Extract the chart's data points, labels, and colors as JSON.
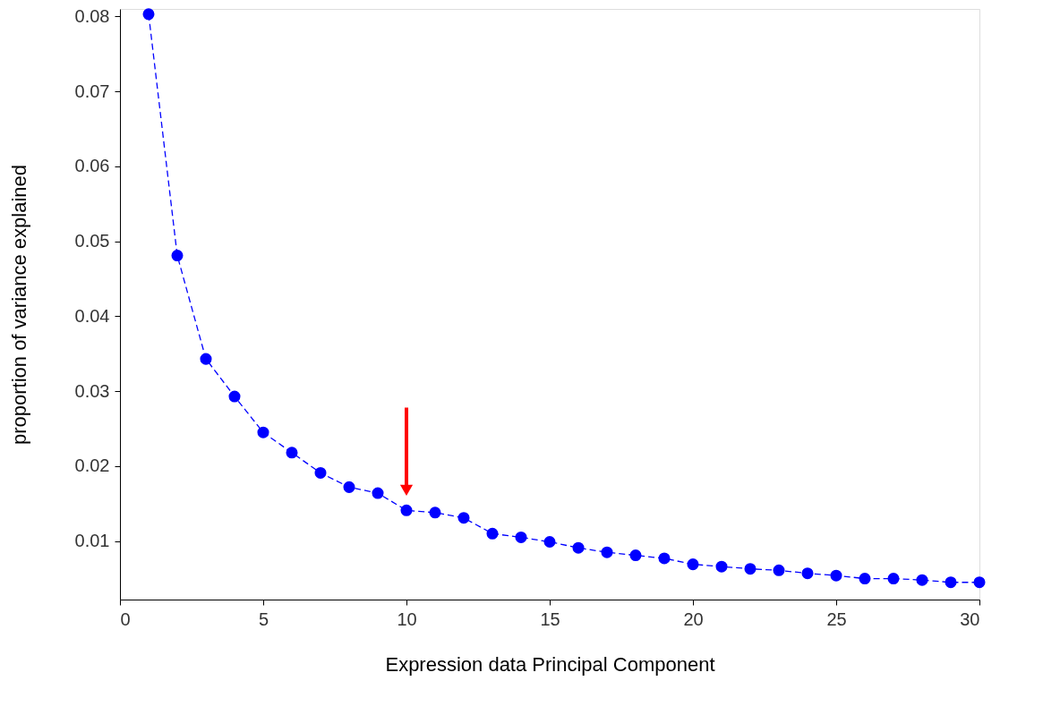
{
  "chart_data": {
    "type": "line",
    "xlabel": "Expression data Principal Component",
    "ylabel": "proportion of variance explained",
    "x": [
      1,
      2,
      3,
      4,
      5,
      6,
      7,
      8,
      9,
      10,
      11,
      12,
      13,
      14,
      15,
      16,
      17,
      18,
      19,
      20,
      21,
      22,
      23,
      24,
      25,
      26,
      27,
      28,
      29,
      30
    ],
    "series": [
      {
        "color": "#0000ff",
        "values": [
          0.0803,
          0.0481,
          0.0343,
          0.0293,
          0.0245,
          0.0218,
          0.0191,
          0.0172,
          0.0164,
          0.0141,
          0.0138,
          0.0131,
          0.011,
          0.0105,
          0.0099,
          0.0091,
          0.0085,
          0.0081,
          0.0077,
          0.0069,
          0.0066,
          0.0063,
          0.0061,
          0.0057,
          0.0054,
          0.005,
          0.005,
          0.0048,
          0.0045,
          0.0045
        ]
      }
    ],
    "xlim": [
      0,
      30
    ],
    "xticks": [
      0,
      5,
      10,
      15,
      20,
      25,
      30
    ],
    "ylim": [
      0.0022,
      0.081
    ],
    "yticks": [
      0.01,
      0.02,
      0.03,
      0.04,
      0.05,
      0.06,
      0.07,
      0.08
    ],
    "grid": false,
    "marker": "circle",
    "line_style": "dashed"
  }
}
